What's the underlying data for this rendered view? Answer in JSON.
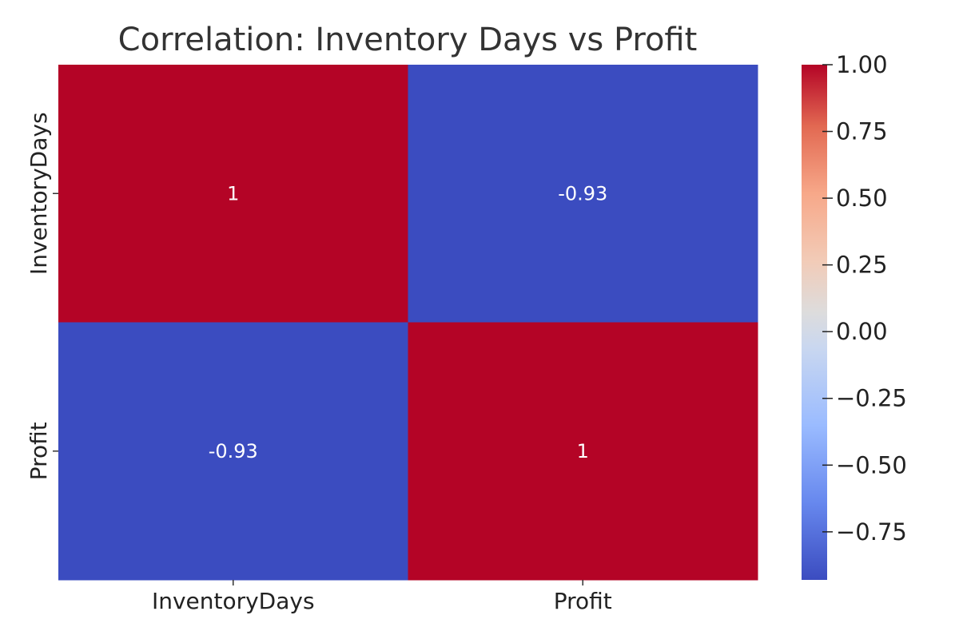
{
  "chart_data": {
    "type": "heatmap",
    "title": "Correlation: Inventory Days vs Profit",
    "row_labels": [
      "InventoryDays",
      "Profit"
    ],
    "col_labels": [
      "InventoryDays",
      "Profit"
    ],
    "values": [
      [
        1,
        -0.93
      ],
      [
        -0.93,
        1
      ]
    ],
    "cell_labels": [
      [
        "1",
        "-0.93"
      ],
      [
        "-0.93",
        "1"
      ]
    ],
    "colormap": "coolwarm",
    "color_range": [
      -0.93,
      1
    ],
    "colorbar_ticks": [
      1.0,
      0.75,
      0.5,
      0.25,
      0.0,
      -0.25,
      -0.5,
      -0.75
    ],
    "colorbar_tick_labels": [
      "1.00",
      "0.75",
      "0.50",
      "0.25",
      "0.00",
      "−0.25",
      "−0.50",
      "−0.75"
    ],
    "colorbar_position": "right",
    "grid": false
  }
}
